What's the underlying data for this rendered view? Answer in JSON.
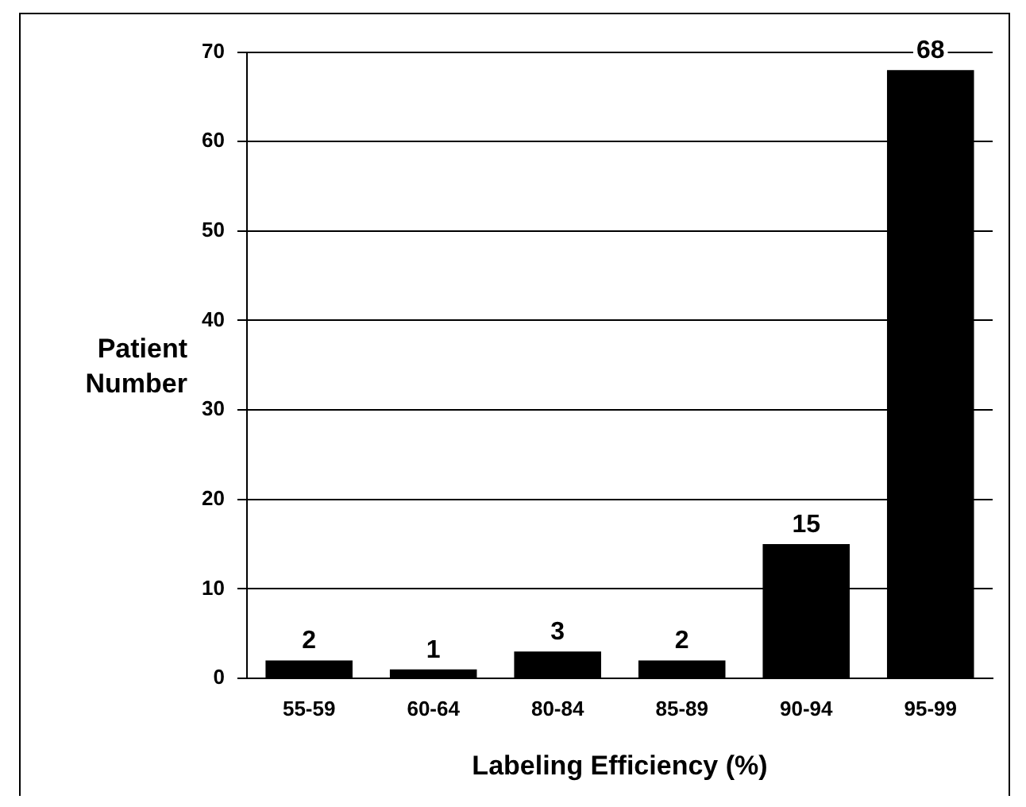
{
  "chart_data": {
    "type": "bar",
    "xlabel": "Labeling Efficiency (%)",
    "ylabel": "Patient Number",
    "categories": [
      "55-59",
      "60-64",
      "80-84",
      "85-89",
      "90-94",
      "95-99"
    ],
    "values": [
      2,
      1,
      3,
      2,
      15,
      68
    ],
    "color": "#000000",
    "ylim": [
      0,
      70
    ],
    "yticks": [
      0,
      10,
      20,
      30,
      40,
      50,
      60,
      70
    ],
    "grid": "y",
    "data_labels": true,
    "legend": false
  }
}
